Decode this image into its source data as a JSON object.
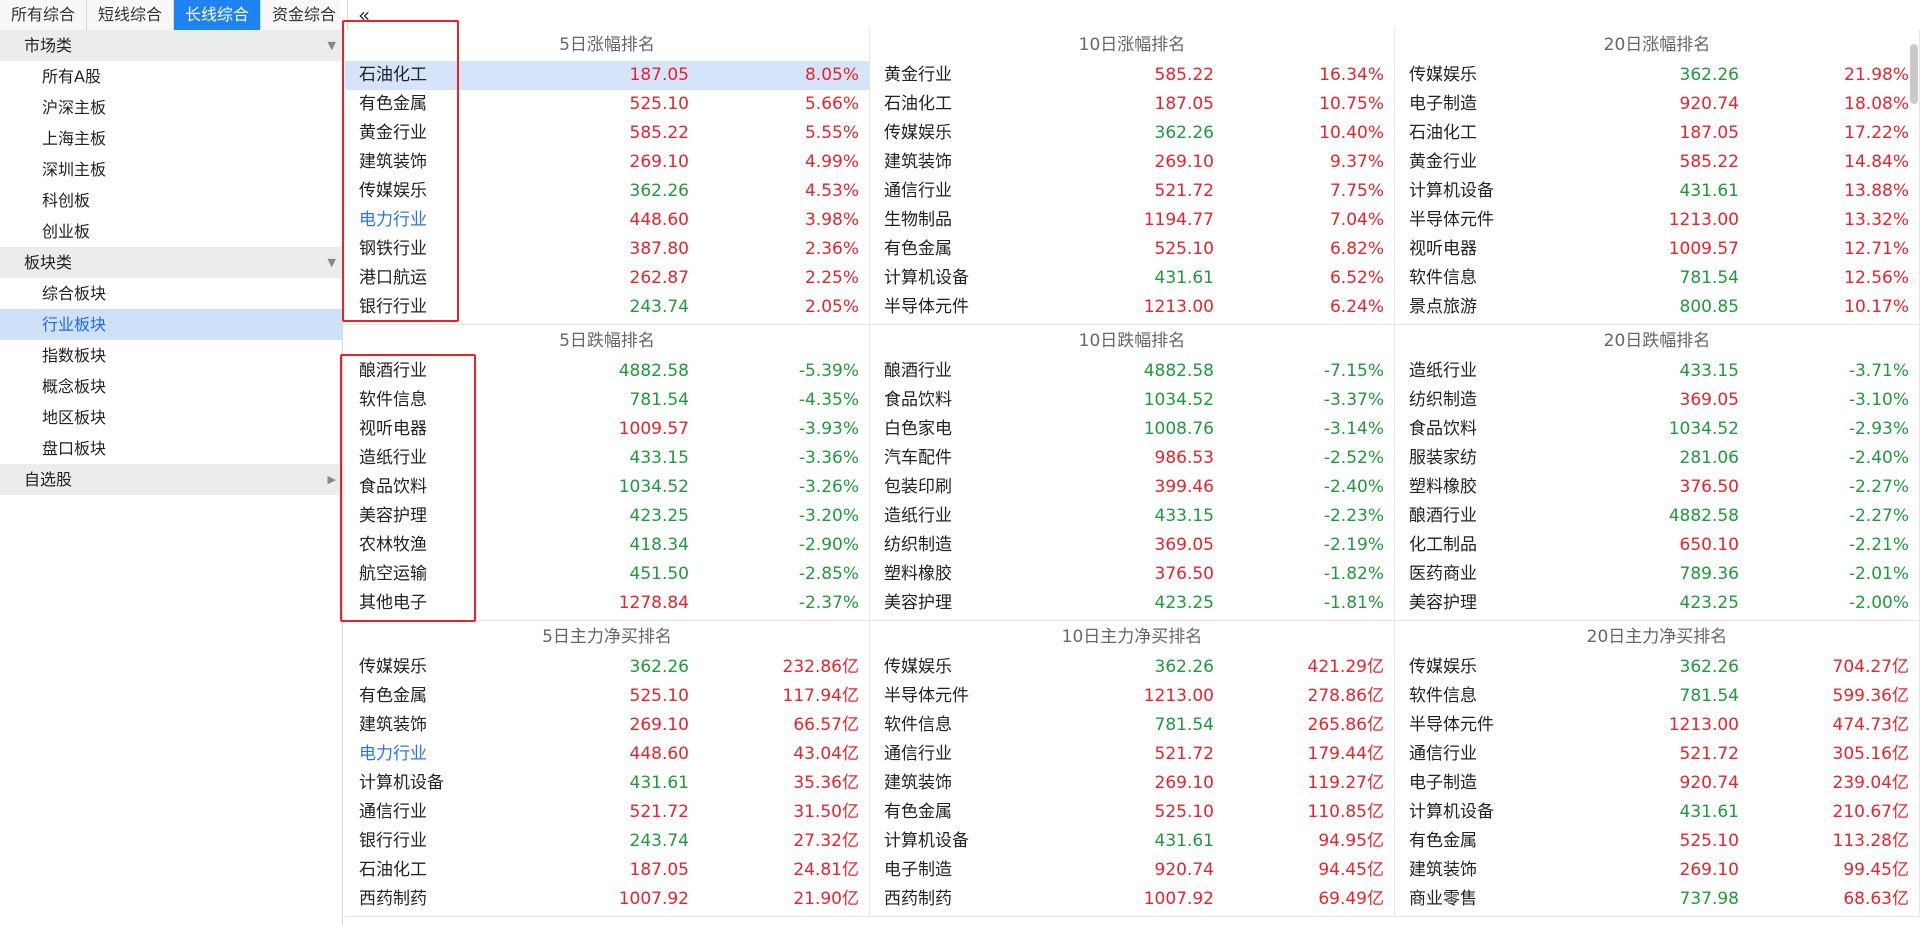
{
  "tabs": [
    {
      "label": "所有综合",
      "active": false
    },
    {
      "label": "短线综合",
      "active": false
    },
    {
      "label": "长线综合",
      "active": true
    },
    {
      "label": "资金综合",
      "active": false
    }
  ],
  "sidebar": {
    "sections": [
      {
        "label": "市场类",
        "arrow": "▼",
        "items": [
          {
            "label": "所有A股",
            "selected": false
          },
          {
            "label": "沪深主板",
            "selected": false
          },
          {
            "label": "上海主板",
            "selected": false
          },
          {
            "label": "深圳主板",
            "selected": false
          },
          {
            "label": "科创板",
            "selected": false
          },
          {
            "label": "创业板",
            "selected": false
          }
        ]
      },
      {
        "label": "板块类",
        "arrow": "▼",
        "items": [
          {
            "label": "综合板块",
            "selected": false
          },
          {
            "label": "行业板块",
            "selected": true
          },
          {
            "label": "指数板块",
            "selected": false
          },
          {
            "label": "概念板块",
            "selected": false
          },
          {
            "label": "地区板块",
            "selected": false
          },
          {
            "label": "盘口板块",
            "selected": false
          }
        ]
      },
      {
        "label": "自选股",
        "arrow": "▶",
        "items": []
      }
    ]
  },
  "collapse_glyph": "«",
  "colors": {
    "up": "#e8232a",
    "down": "#1f9a3a",
    "accent": "#1e82f0",
    "link": "#2a74e8",
    "highlight_box": "#e8232a"
  },
  "panels": [
    {
      "title": "5日涨幅排名",
      "rows": [
        {
          "name": "石油化工",
          "price": "187.05",
          "pc": "red",
          "pct": "8.05%",
          "vc": "red",
          "hl": true
        },
        {
          "name": "有色金属",
          "price": "525.10",
          "pc": "red",
          "pct": "5.66%",
          "vc": "red"
        },
        {
          "name": "黄金行业",
          "price": "585.22",
          "pc": "red",
          "pct": "5.55%",
          "vc": "red"
        },
        {
          "name": "建筑装饰",
          "price": "269.10",
          "pc": "red",
          "pct": "4.99%",
          "vc": "red"
        },
        {
          "name": "传媒娱乐",
          "price": "362.26",
          "pc": "green",
          "pct": "4.53%",
          "vc": "red"
        },
        {
          "name": "电力行业",
          "price": "448.60",
          "pc": "red",
          "pct": "3.98%",
          "vc": "red",
          "link": true
        },
        {
          "name": "钢铁行业",
          "price": "387.80",
          "pc": "red",
          "pct": "2.36%",
          "vc": "red"
        },
        {
          "name": "港口航运",
          "price": "262.87",
          "pc": "red",
          "pct": "2.25%",
          "vc": "red"
        },
        {
          "name": "银行行业",
          "price": "243.74",
          "pc": "green",
          "pct": "2.05%",
          "vc": "red"
        }
      ]
    },
    {
      "title": "10日涨幅排名",
      "rows": [
        {
          "name": "黄金行业",
          "price": "585.22",
          "pc": "red",
          "pct": "16.34%",
          "vc": "red"
        },
        {
          "name": "石油化工",
          "price": "187.05",
          "pc": "red",
          "pct": "10.75%",
          "vc": "red"
        },
        {
          "name": "传媒娱乐",
          "price": "362.26",
          "pc": "green",
          "pct": "10.40%",
          "vc": "red"
        },
        {
          "name": "建筑装饰",
          "price": "269.10",
          "pc": "red",
          "pct": "9.37%",
          "vc": "red"
        },
        {
          "name": "通信行业",
          "price": "521.72",
          "pc": "red",
          "pct": "7.75%",
          "vc": "red"
        },
        {
          "name": "生物制品",
          "price": "1194.77",
          "pc": "red",
          "pct": "7.04%",
          "vc": "red"
        },
        {
          "name": "有色金属",
          "price": "525.10",
          "pc": "red",
          "pct": "6.82%",
          "vc": "red"
        },
        {
          "name": "计算机设备",
          "price": "431.61",
          "pc": "green",
          "pct": "6.52%",
          "vc": "red"
        },
        {
          "name": "半导体元件",
          "price": "1213.00",
          "pc": "red",
          "pct": "6.24%",
          "vc": "red"
        }
      ]
    },
    {
      "title": "20日涨幅排名",
      "rows": [
        {
          "name": "传媒娱乐",
          "price": "362.26",
          "pc": "green",
          "pct": "21.98%",
          "vc": "red"
        },
        {
          "name": "电子制造",
          "price": "920.74",
          "pc": "red",
          "pct": "18.08%",
          "vc": "red"
        },
        {
          "name": "石油化工",
          "price": "187.05",
          "pc": "red",
          "pct": "17.22%",
          "vc": "red"
        },
        {
          "name": "黄金行业",
          "price": "585.22",
          "pc": "red",
          "pct": "14.84%",
          "vc": "red"
        },
        {
          "name": "计算机设备",
          "price": "431.61",
          "pc": "green",
          "pct": "13.88%",
          "vc": "red"
        },
        {
          "name": "半导体元件",
          "price": "1213.00",
          "pc": "red",
          "pct": "13.32%",
          "vc": "red"
        },
        {
          "name": "视听电器",
          "price": "1009.57",
          "pc": "red",
          "pct": "12.71%",
          "vc": "red"
        },
        {
          "name": "软件信息",
          "price": "781.54",
          "pc": "green",
          "pct": "12.56%",
          "vc": "red"
        },
        {
          "name": "景点旅游",
          "price": "800.85",
          "pc": "green",
          "pct": "10.17%",
          "vc": "red"
        }
      ]
    },
    {
      "title": "5日跌幅排名",
      "rows": [
        {
          "name": "酿酒行业",
          "price": "4882.58",
          "pc": "green",
          "pct": "-5.39%",
          "vc": "green"
        },
        {
          "name": "软件信息",
          "price": "781.54",
          "pc": "green",
          "pct": "-4.35%",
          "vc": "green"
        },
        {
          "name": "视听电器",
          "price": "1009.57",
          "pc": "red",
          "pct": "-3.93%",
          "vc": "green"
        },
        {
          "name": "造纸行业",
          "price": "433.15",
          "pc": "green",
          "pct": "-3.36%",
          "vc": "green"
        },
        {
          "name": "食品饮料",
          "price": "1034.52",
          "pc": "green",
          "pct": "-3.26%",
          "vc": "green"
        },
        {
          "name": "美容护理",
          "price": "423.25",
          "pc": "green",
          "pct": "-3.20%",
          "vc": "green"
        },
        {
          "name": "农林牧渔",
          "price": "418.34",
          "pc": "green",
          "pct": "-2.90%",
          "vc": "green"
        },
        {
          "name": "航空运输",
          "price": "451.50",
          "pc": "green",
          "pct": "-2.85%",
          "vc": "green"
        },
        {
          "name": "其他电子",
          "price": "1278.84",
          "pc": "red",
          "pct": "-2.37%",
          "vc": "green"
        }
      ]
    },
    {
      "title": "10日跌幅排名",
      "rows": [
        {
          "name": "酿酒行业",
          "price": "4882.58",
          "pc": "green",
          "pct": "-7.15%",
          "vc": "green"
        },
        {
          "name": "食品饮料",
          "price": "1034.52",
          "pc": "green",
          "pct": "-3.37%",
          "vc": "green"
        },
        {
          "name": "白色家电",
          "price": "1008.76",
          "pc": "green",
          "pct": "-3.14%",
          "vc": "green"
        },
        {
          "name": "汽车配件",
          "price": "986.53",
          "pc": "red",
          "pct": "-2.52%",
          "vc": "green"
        },
        {
          "name": "包装印刷",
          "price": "399.46",
          "pc": "red",
          "pct": "-2.40%",
          "vc": "green"
        },
        {
          "name": "造纸行业",
          "price": "433.15",
          "pc": "green",
          "pct": "-2.23%",
          "vc": "green"
        },
        {
          "name": "纺织制造",
          "price": "369.05",
          "pc": "red",
          "pct": "-2.19%",
          "vc": "green"
        },
        {
          "name": "塑料橡胶",
          "price": "376.50",
          "pc": "red",
          "pct": "-1.82%",
          "vc": "green"
        },
        {
          "name": "美容护理",
          "price": "423.25",
          "pc": "green",
          "pct": "-1.81%",
          "vc": "green"
        }
      ]
    },
    {
      "title": "20日跌幅排名",
      "rows": [
        {
          "name": "造纸行业",
          "price": "433.15",
          "pc": "green",
          "pct": "-3.71%",
          "vc": "green"
        },
        {
          "name": "纺织制造",
          "price": "369.05",
          "pc": "red",
          "pct": "-3.10%",
          "vc": "green"
        },
        {
          "name": "食品饮料",
          "price": "1034.52",
          "pc": "green",
          "pct": "-2.93%",
          "vc": "green"
        },
        {
          "name": "服装家纺",
          "price": "281.06",
          "pc": "green",
          "pct": "-2.40%",
          "vc": "green"
        },
        {
          "name": "塑料橡胶",
          "price": "376.50",
          "pc": "red",
          "pct": "-2.27%",
          "vc": "green"
        },
        {
          "name": "酿酒行业",
          "price": "4882.58",
          "pc": "green",
          "pct": "-2.27%",
          "vc": "green"
        },
        {
          "name": "化工制品",
          "price": "650.10",
          "pc": "red",
          "pct": "-2.21%",
          "vc": "green"
        },
        {
          "name": "医药商业",
          "price": "789.36",
          "pc": "green",
          "pct": "-2.01%",
          "vc": "green"
        },
        {
          "name": "美容护理",
          "price": "423.25",
          "pc": "green",
          "pct": "-2.00%",
          "vc": "green"
        }
      ]
    },
    {
      "title": "5日主力净买排名",
      "rows": [
        {
          "name": "传媒娱乐",
          "price": "362.26",
          "pc": "green",
          "pct": "232.86亿",
          "vc": "red"
        },
        {
          "name": "有色金属",
          "price": "525.10",
          "pc": "red",
          "pct": "117.94亿",
          "vc": "red"
        },
        {
          "name": "建筑装饰",
          "price": "269.10",
          "pc": "red",
          "pct": "66.57亿",
          "vc": "red"
        },
        {
          "name": "电力行业",
          "price": "448.60",
          "pc": "red",
          "pct": "43.04亿",
          "vc": "red",
          "link": true
        },
        {
          "name": "计算机设备",
          "price": "431.61",
          "pc": "green",
          "pct": "35.36亿",
          "vc": "red"
        },
        {
          "name": "通信行业",
          "price": "521.72",
          "pc": "red",
          "pct": "31.50亿",
          "vc": "red"
        },
        {
          "name": "银行行业",
          "price": "243.74",
          "pc": "green",
          "pct": "27.32亿",
          "vc": "red"
        },
        {
          "name": "石油化工",
          "price": "187.05",
          "pc": "red",
          "pct": "24.81亿",
          "vc": "red"
        },
        {
          "name": "西药制药",
          "price": "1007.92",
          "pc": "red",
          "pct": "21.90亿",
          "vc": "red"
        }
      ]
    },
    {
      "title": "10日主力净买排名",
      "rows": [
        {
          "name": "传媒娱乐",
          "price": "362.26",
          "pc": "green",
          "pct": "421.29亿",
          "vc": "red"
        },
        {
          "name": "半导体元件",
          "price": "1213.00",
          "pc": "red",
          "pct": "278.86亿",
          "vc": "red"
        },
        {
          "name": "软件信息",
          "price": "781.54",
          "pc": "green",
          "pct": "265.86亿",
          "vc": "red"
        },
        {
          "name": "通信行业",
          "price": "521.72",
          "pc": "red",
          "pct": "179.44亿",
          "vc": "red"
        },
        {
          "name": "建筑装饰",
          "price": "269.10",
          "pc": "red",
          "pct": "119.27亿",
          "vc": "red"
        },
        {
          "name": "有色金属",
          "price": "525.10",
          "pc": "red",
          "pct": "110.85亿",
          "vc": "red"
        },
        {
          "name": "计算机设备",
          "price": "431.61",
          "pc": "green",
          "pct": "94.95亿",
          "vc": "red"
        },
        {
          "name": "电子制造",
          "price": "920.74",
          "pc": "red",
          "pct": "94.45亿",
          "vc": "red"
        },
        {
          "name": "西药制药",
          "price": "1007.92",
          "pc": "red",
          "pct": "69.49亿",
          "vc": "red"
        }
      ]
    },
    {
      "title": "20日主力净买排名",
      "rows": [
        {
          "name": "传媒娱乐",
          "price": "362.26",
          "pc": "green",
          "pct": "704.27亿",
          "vc": "red"
        },
        {
          "name": "软件信息",
          "price": "781.54",
          "pc": "green",
          "pct": "599.36亿",
          "vc": "red"
        },
        {
          "name": "半导体元件",
          "price": "1213.00",
          "pc": "red",
          "pct": "474.73亿",
          "vc": "red"
        },
        {
          "name": "通信行业",
          "price": "521.72",
          "pc": "red",
          "pct": "305.16亿",
          "vc": "red"
        },
        {
          "name": "电子制造",
          "price": "920.74",
          "pc": "red",
          "pct": "239.04亿",
          "vc": "red"
        },
        {
          "name": "计算机设备",
          "price": "431.61",
          "pc": "green",
          "pct": "210.67亿",
          "vc": "red"
        },
        {
          "name": "有色金属",
          "price": "525.10",
          "pc": "red",
          "pct": "113.28亿",
          "vc": "red"
        },
        {
          "name": "建筑装饰",
          "price": "269.10",
          "pc": "red",
          "pct": "99.45亿",
          "vc": "red"
        },
        {
          "name": "商业零售",
          "price": "737.98",
          "pc": "green",
          "pct": "68.63亿",
          "vc": "red"
        }
      ]
    }
  ]
}
